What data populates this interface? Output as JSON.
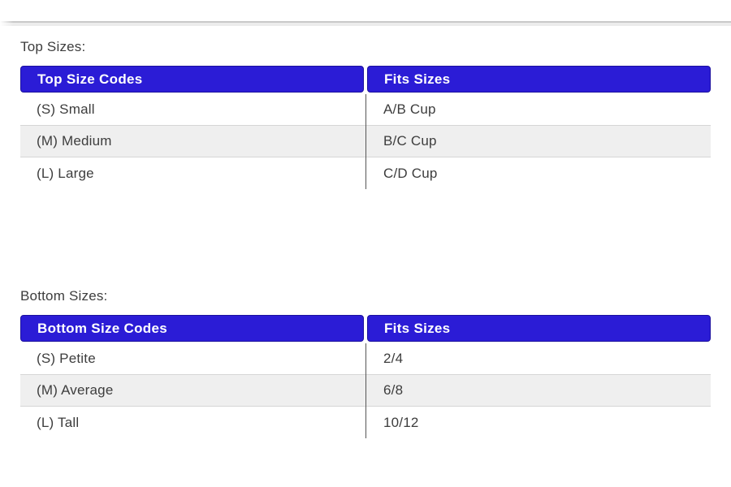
{
  "sections": [
    {
      "label": "Top Sizes:",
      "table": {
        "headers": [
          "Top Size Codes",
          "Fits Sizes"
        ],
        "rows": [
          [
            "(S) Small",
            "A/B Cup"
          ],
          [
            "(M) Medium",
            "B/C Cup"
          ],
          [
            "(L) Large",
            "C/D Cup"
          ]
        ]
      }
    },
    {
      "label": "Bottom Sizes:",
      "table": {
        "headers": [
          "Bottom Size Codes",
          "Fits Sizes"
        ],
        "rows": [
          [
            "(S) Petite",
            "2/4"
          ],
          [
            "(M) Average",
            "6/8"
          ],
          [
            "(L) Tall",
            "10/12"
          ]
        ]
      }
    }
  ],
  "colors": {
    "header_bg": "#2b1cd6",
    "header_border": "#1b109e",
    "header_text": "#ffffff",
    "body_text": "#3d3d3d",
    "row_alt_bg": "#efefef",
    "row_border": "#d6d6d6",
    "column_divider": "#565656",
    "top_rule_line": "#c9c9c9",
    "top_rule_shadow": "#ececec",
    "page_bg": "#ffffff"
  }
}
